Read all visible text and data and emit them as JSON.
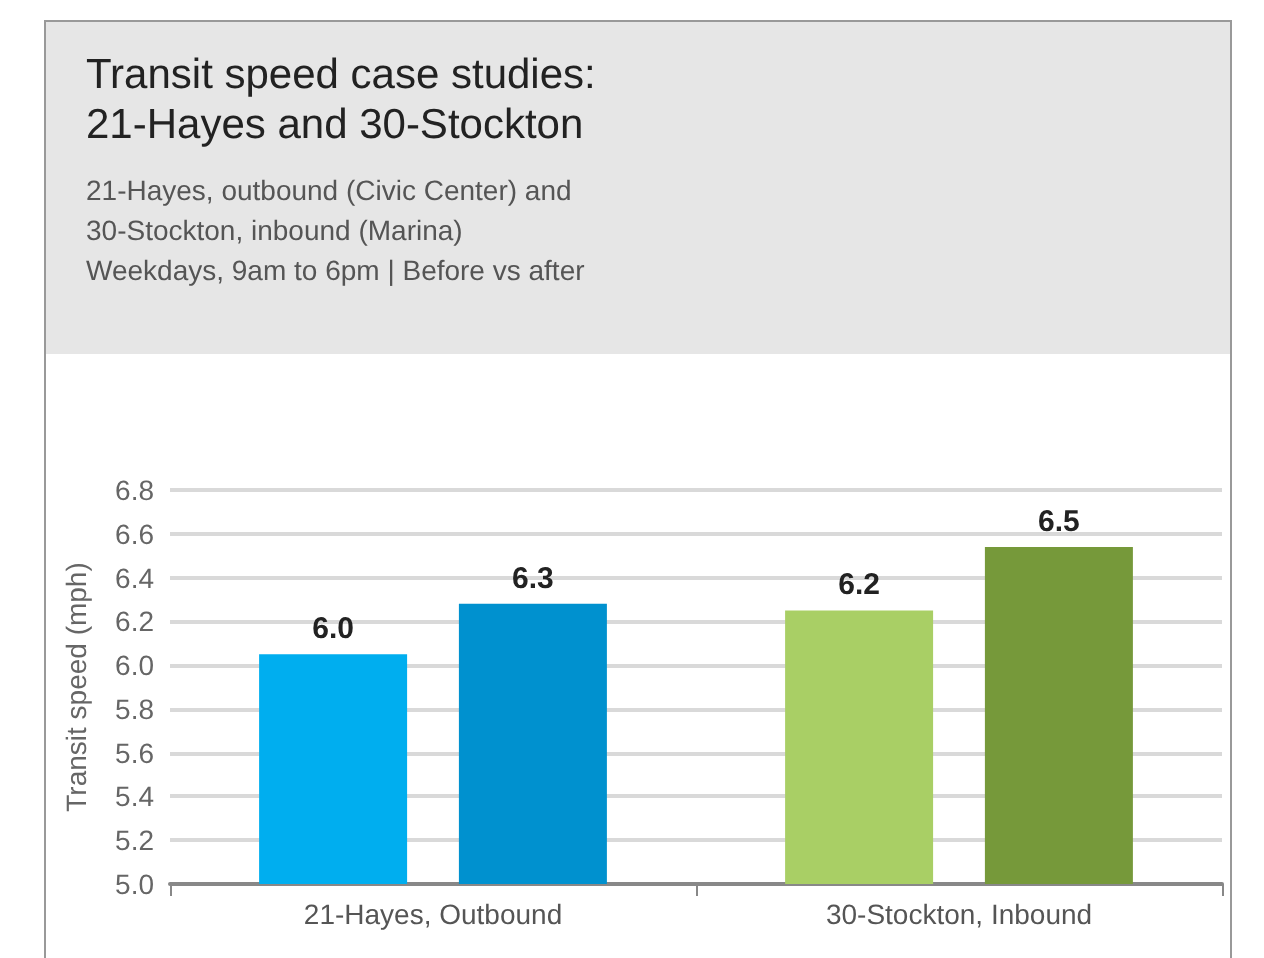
{
  "chart_data": {
    "type": "bar",
    "title": "Transit speed case studies:\n21-Hayes and 30-Stockton",
    "subtitle": "21-Hayes, outbound (Civic Center) and\n30-Stockton, inbound (Marina)\nWeekdays, 9am to 6pm  |  Before vs after",
    "ylabel": "Transit speed (mph)",
    "categories": [
      "21-Hayes, Outbound",
      "30-Stockton, Inbound"
    ],
    "series": [
      {
        "colors": [
          "#00aeef",
          "#a9cf65"
        ],
        "values": [
          6.05,
          6.25
        ],
        "value_labels": [
          "6.0",
          "6.2"
        ]
      },
      {
        "colors": [
          "#0091cf",
          "#76993a"
        ],
        "values": [
          6.28,
          6.54
        ],
        "value_labels": [
          "6.3",
          "6.5"
        ]
      }
    ],
    "ylim": [
      5.0,
      6.8
    ],
    "yticks": [
      {
        "value": 5,
        "label": "5.0"
      },
      {
        "value": 5.2,
        "label": "5.2"
      },
      {
        "value": 5.4,
        "label": "5.4"
      },
      {
        "value": 5.6,
        "label": "5.6"
      },
      {
        "value": 5.8,
        "label": "5.8"
      },
      {
        "value": 6,
        "label": "6.0"
      },
      {
        "value": 6.2,
        "label": "6.2"
      },
      {
        "value": 6.4,
        "label": "6.4"
      },
      {
        "value": 6.6,
        "label": "6.6"
      },
      {
        "value": 6.8,
        "label": "6.8"
      }
    ],
    "grid": "y"
  }
}
